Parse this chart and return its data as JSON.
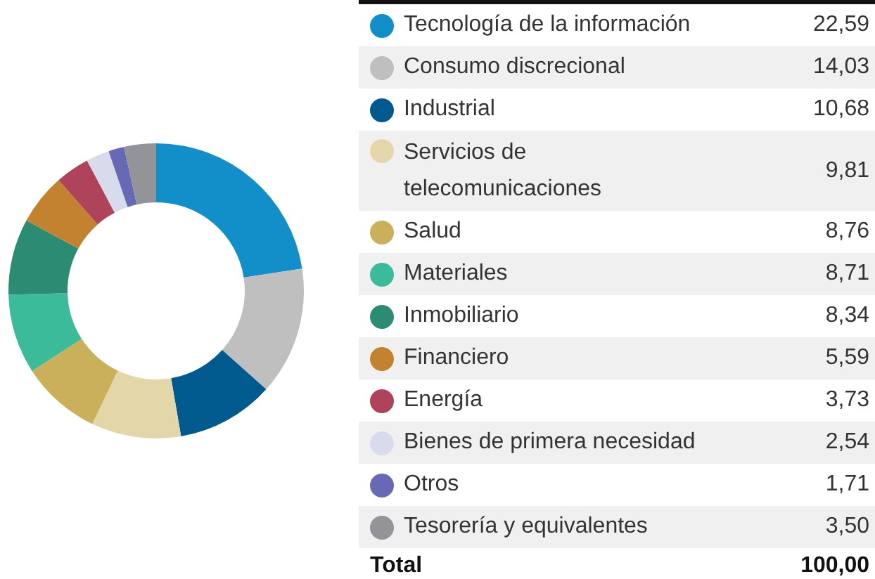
{
  "chart_data": {
    "type": "donut",
    "categories": [
      "Tecnología de la información",
      "Consumo discrecional",
      "Industrial",
      "Servicios de telecomunicaciones",
      "Salud",
      "Materiales",
      "Inmobiliario",
      "Financiero",
      "Energía",
      "Bienes de primera necesidad",
      "Otros",
      "Tesorería y equivalentes"
    ],
    "values": [
      22.59,
      14.03,
      10.68,
      9.81,
      8.76,
      8.71,
      8.34,
      5.59,
      3.73,
      2.54,
      1.71,
      3.5
    ],
    "value_labels": [
      "22,59",
      "14,03",
      "10,68",
      "9,81",
      "8,76",
      "8,71",
      "8,34",
      "5,59",
      "3,73",
      "2,54",
      "1,71",
      "3,50"
    ],
    "colors": [
      "#128fc8",
      "#bfbfbf",
      "#005a8e",
      "#e3d7a9",
      "#cbb05c",
      "#3bbb9a",
      "#2c8b73",
      "#c2822f",
      "#b0435c",
      "#d8dbeb",
      "#6869b4",
      "#939497"
    ],
    "legend": "right",
    "annotations": [
      "Total",
      "100,00"
    ]
  }
}
